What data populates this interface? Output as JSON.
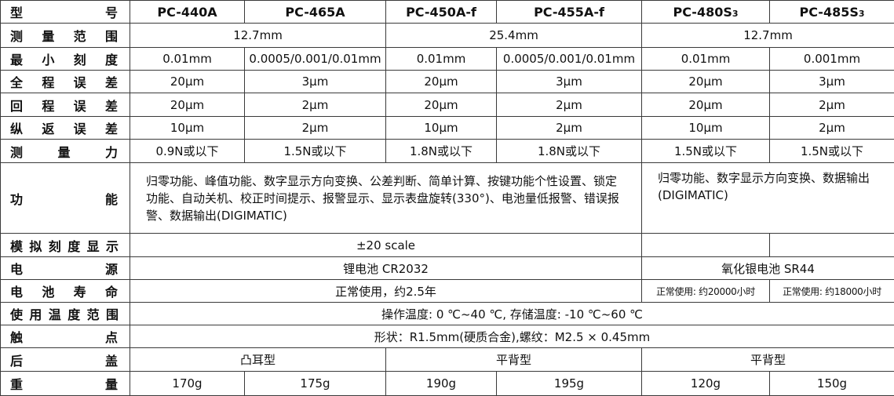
{
  "header": {
    "label": "型号",
    "models": [
      "PC-440A",
      "PC-465A",
      "PC-450A-f",
      "PC-455A-f",
      "PC-480S3",
      "PC-485S3"
    ]
  },
  "rows": {
    "range": {
      "label": "测量范围",
      "v1": "12.7mm",
      "v2": "25.4mm",
      "v3": "12.7mm"
    },
    "resolution": {
      "label": "最小刻度",
      "values": [
        "0.01mm",
        "0.0005/0.001/0.01mm",
        "0.01mm",
        "0.0005/0.001/0.01mm",
        "0.01mm",
        "0.001mm"
      ]
    },
    "total_error": {
      "label": "全程误差",
      "values": [
        "20μm",
        "3μm",
        "20μm",
        "3μm",
        "20μm",
        "3μm"
      ]
    },
    "return_error": {
      "label": "回程误差",
      "values": [
        "20μm",
        "2μm",
        "20μm",
        "2μm",
        "20μm",
        "2μm"
      ]
    },
    "repeat_error": {
      "label": "纵返误差",
      "values": [
        "10μm",
        "2μm",
        "10μm",
        "2μm",
        "10μm",
        "2μm"
      ]
    },
    "force": {
      "label": "测量力",
      "values": [
        "0.9N或以下",
        "1.5N或以下",
        "1.8N或以下",
        "1.8N或以下",
        "1.5N或以下",
        "1.5N或以下"
      ]
    },
    "functions": {
      "label": "功能",
      "left": "归零功能、峰值功能、数字显示方向变换、公差判断、简单计算、按键功能个性设置、锁定功能、自动关机、校正时间提示、报警显示、显示表盘旋转(330°)、电池量低报警、错误报警、数据输出(DIGIMATIC)",
      "right": "归零功能、数字显示方向变换、数据输出(DIGIMATIC)"
    },
    "analog": {
      "label": "模拟刻度显示",
      "value": "±20 scale",
      "v2": "",
      "v3": ""
    },
    "power": {
      "label": "电源",
      "v1": "锂电池 CR2032",
      "v2": "氧化银电池 SR44"
    },
    "battery_life": {
      "label": "电池寿命",
      "v1": "正常使用，约2.5年",
      "v2": "正常使用: 约20000小时",
      "v3": "正常使用: 约18000小时"
    },
    "temperature": {
      "label": "使用温度范围",
      "value": "操作温度: 0 ℃~40 ℃, 存储温度: -10 ℃~60 ℃"
    },
    "contact": {
      "label": "触点",
      "value": "形状：R1.5mm(硬质合金),螺纹：M2.5 × 0.45mm"
    },
    "back_cover": {
      "label": "后盖",
      "values": [
        "凸耳型",
        "平背型",
        "平背型"
      ]
    },
    "weight": {
      "label": "重量",
      "values": [
        "170g",
        "175g",
        "190g",
        "195g",
        "120g",
        "150g"
      ]
    }
  }
}
